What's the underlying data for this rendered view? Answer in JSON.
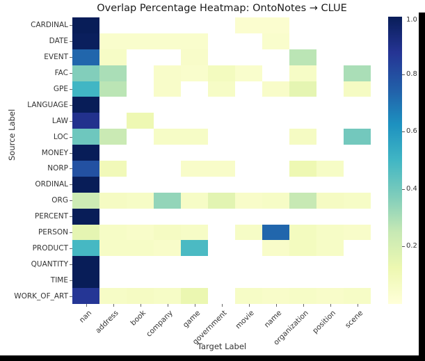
{
  "title": "Overlap Percentage Heatmap: OntoNotes → CLUE",
  "chart_data": {
    "type": "heatmap",
    "title": "Overlap Percentage Heatmap: OntoNotes → CLUE",
    "xlabel": "Target Label",
    "ylabel": "Source Label",
    "x_categories": [
      "nan",
      "address",
      "book",
      "company",
      "game",
      "government",
      "movie",
      "name",
      "organization",
      "position",
      "scene"
    ],
    "y_categories": [
      "CARDINAL",
      "DATE",
      "EVENT",
      "FAC",
      "GPE",
      "LANGUAGE",
      "LAW",
      "LOC",
      "MONEY",
      "NORP",
      "ORDINAL",
      "ORG",
      "PERCENT",
      "PERSON",
      "PRODUCT",
      "QUANTITY",
      "TIME",
      "WORK_OF_ART"
    ],
    "values": [
      [
        1.0,
        null,
        null,
        null,
        null,
        null,
        0.03,
        0.03,
        null,
        null,
        null
      ],
      [
        0.99,
        0.04,
        0.04,
        0.04,
        0.04,
        null,
        null,
        0.04,
        null,
        null,
        null
      ],
      [
        0.73,
        0.06,
        null,
        null,
        0.05,
        null,
        null,
        null,
        0.27,
        null,
        null
      ],
      [
        0.37,
        0.3,
        null,
        0.05,
        0.04,
        0.08,
        0.04,
        null,
        0.06,
        null,
        0.3
      ],
      [
        0.5,
        0.27,
        null,
        0.05,
        null,
        0.06,
        null,
        0.05,
        0.15,
        null,
        0.07
      ],
      [
        1.0,
        null,
        null,
        null,
        null,
        null,
        null,
        null,
        null,
        null,
        null
      ],
      [
        0.89,
        null,
        0.12,
        null,
        null,
        null,
        null,
        null,
        null,
        null,
        null
      ],
      [
        0.41,
        0.24,
        null,
        0.06,
        0.06,
        null,
        null,
        null,
        0.07,
        null,
        0.4
      ],
      [
        1.0,
        null,
        null,
        null,
        null,
        null,
        null,
        null,
        null,
        null,
        null
      ],
      [
        0.79,
        0.1,
        null,
        null,
        0.05,
        0.05,
        null,
        null,
        0.12,
        0.06,
        null
      ],
      [
        1.0,
        null,
        null,
        null,
        null,
        null,
        null,
        null,
        null,
        null,
        null
      ],
      [
        0.23,
        0.07,
        0.06,
        0.34,
        0.06,
        0.16,
        0.05,
        0.06,
        0.25,
        0.07,
        0.06
      ],
      [
        1.0,
        null,
        null,
        null,
        null,
        null,
        null,
        null,
        null,
        null,
        null
      ],
      [
        0.15,
        0.06,
        0.05,
        0.07,
        0.06,
        null,
        0.06,
        0.73,
        0.08,
        0.06,
        0.05
      ],
      [
        0.49,
        0.06,
        0.06,
        0.05,
        0.48,
        null,
        null,
        0.05,
        0.08,
        0.06,
        null
      ],
      [
        1.0,
        null,
        null,
        null,
        null,
        null,
        null,
        null,
        null,
        null,
        null
      ],
      [
        1.0,
        null,
        null,
        null,
        null,
        null,
        null,
        null,
        null,
        null,
        null
      ],
      [
        0.87,
        0.06,
        0.07,
        0.06,
        0.13,
        null,
        0.06,
        0.05,
        0.06,
        0.05,
        0.06
      ]
    ],
    "missing_color": "#ffffff",
    "colormap": "YlGnBu",
    "colormap_stops": [
      [
        0.0,
        "#ffffd9"
      ],
      [
        0.125,
        "#edf8b1"
      ],
      [
        0.25,
        "#c7e9b4"
      ],
      [
        0.375,
        "#7fcdbb"
      ],
      [
        0.5,
        "#41b6c4"
      ],
      [
        0.625,
        "#1d91c0"
      ],
      [
        0.75,
        "#225ea8"
      ],
      [
        0.875,
        "#253494"
      ],
      [
        1.0,
        "#081d58"
      ]
    ],
    "vmin": 0.0,
    "vmax": 1.0,
    "colorbar_ticks": [
      "1.0",
      "0.8",
      "0.6",
      "0.4",
      "0.2"
    ],
    "colorbar_tick_values": [
      1.0,
      0.8,
      0.6,
      0.4,
      0.2
    ],
    "legend_position": "right-colorbar",
    "grid": false
  }
}
